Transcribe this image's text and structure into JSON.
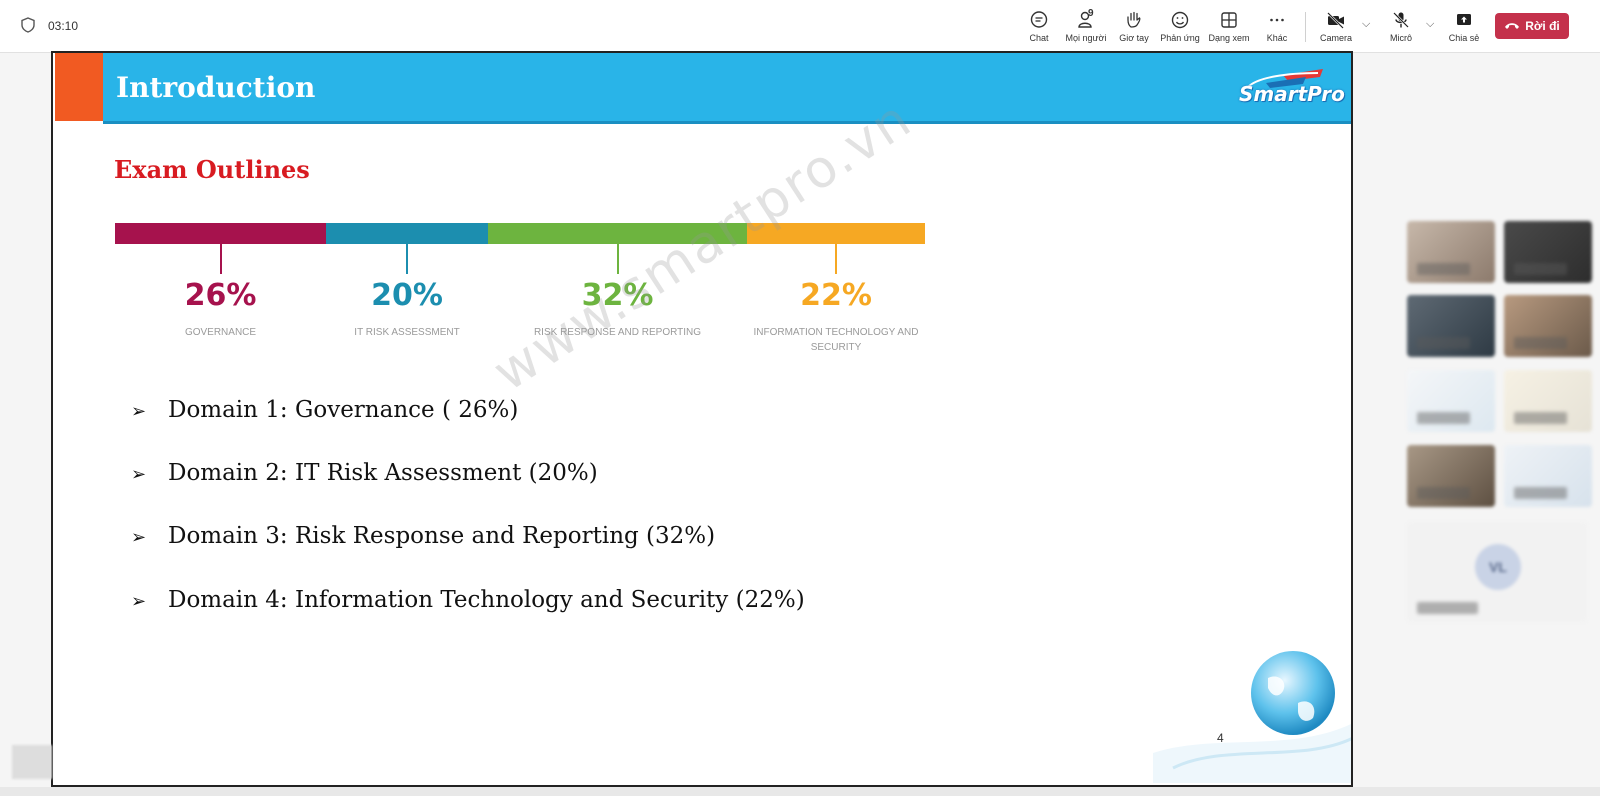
{
  "meeting": {
    "timer": "03:10",
    "people_count": "9",
    "toolbar": {
      "chat": "Chat",
      "people": "Mọi người",
      "raise_hand": "Giơ tay",
      "react": "Phản ứng",
      "view": "Dạng xem",
      "more": "Khác",
      "camera": "Camera",
      "mic": "Micrô",
      "share": "Chia sẻ",
      "leave": "Rời đi"
    }
  },
  "slide": {
    "title": "Introduction",
    "logo": "SmartPro",
    "subtitle": "Exam Outlines",
    "watermark": "www.smartpro.vn",
    "page_number": "4",
    "segments": [
      {
        "percent": "26%",
        "label": "GOVERNANCE",
        "color": "#a6124d",
        "share": 0.26
      },
      {
        "percent": "20%",
        "label": "IT RISK ASSESSMENT",
        "color": "#1c8eaf",
        "share": 0.2
      },
      {
        "percent": "32%",
        "label": "RISK RESPONSE AND REPORTING",
        "color": "#6db43f",
        "share": 0.32
      },
      {
        "percent": "22%",
        "label": "INFORMATION TECHNOLOGY AND SECURITY",
        "color": "#f6a823",
        "share": 0.22
      }
    ],
    "domains": [
      "Domain 1: Governance ( 26%)",
      "Domain 2: IT Risk Assessment (20%)",
      "Domain 3: Risk Response and Reporting (32%)",
      "Domain 4: Information Technology and Security (22%)"
    ],
    "bullet": "➢"
  },
  "participants": {
    "avatar_initials": "VL"
  },
  "colors": {
    "accent_blue": "#29b4e8",
    "orange": "#f15a22",
    "leave_red": "#c4314b",
    "subtitle_red": "#d81b21"
  }
}
